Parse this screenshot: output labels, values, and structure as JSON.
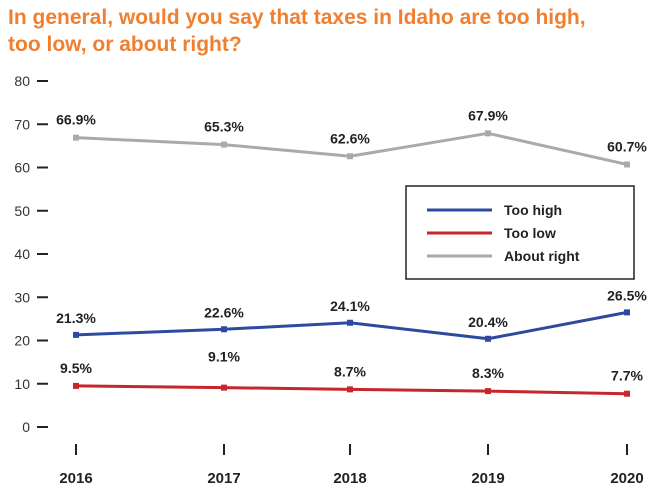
{
  "chart_data": {
    "type": "line",
    "title_lines": [
      "In general, would you say that taxes in Idaho are too high,",
      "too low, or about right?"
    ],
    "x": [
      "2016",
      "2017",
      "2018",
      "2019",
      "2020"
    ],
    "ylim": [
      0,
      80
    ],
    "yticks": [
      0,
      10,
      20,
      30,
      40,
      50,
      60,
      70,
      80
    ],
    "series": [
      {
        "name": "Too high",
        "color": "#2e4a9e",
        "values": [
          21.3,
          22.6,
          24.1,
          20.4,
          26.5
        ],
        "labels": [
          "21.3%",
          "22.6%",
          "24.1%",
          "20.4%",
          "26.5%"
        ]
      },
      {
        "name": "Too low",
        "color": "#c8262d",
        "values": [
          9.5,
          9.1,
          8.7,
          8.3,
          7.7
        ],
        "labels": [
          "9.5%",
          "9.1%",
          "8.7%",
          "8.3%",
          "7.7%"
        ]
      },
      {
        "name": "About right",
        "color": "#aaaaaa",
        "values": [
          66.9,
          65.3,
          62.6,
          67.9,
          60.7
        ],
        "labels": [
          "66.9%",
          "65.3%",
          "62.6%",
          "67.9%",
          "60.7%"
        ]
      }
    ],
    "legend_position": "right",
    "grid": false
  }
}
